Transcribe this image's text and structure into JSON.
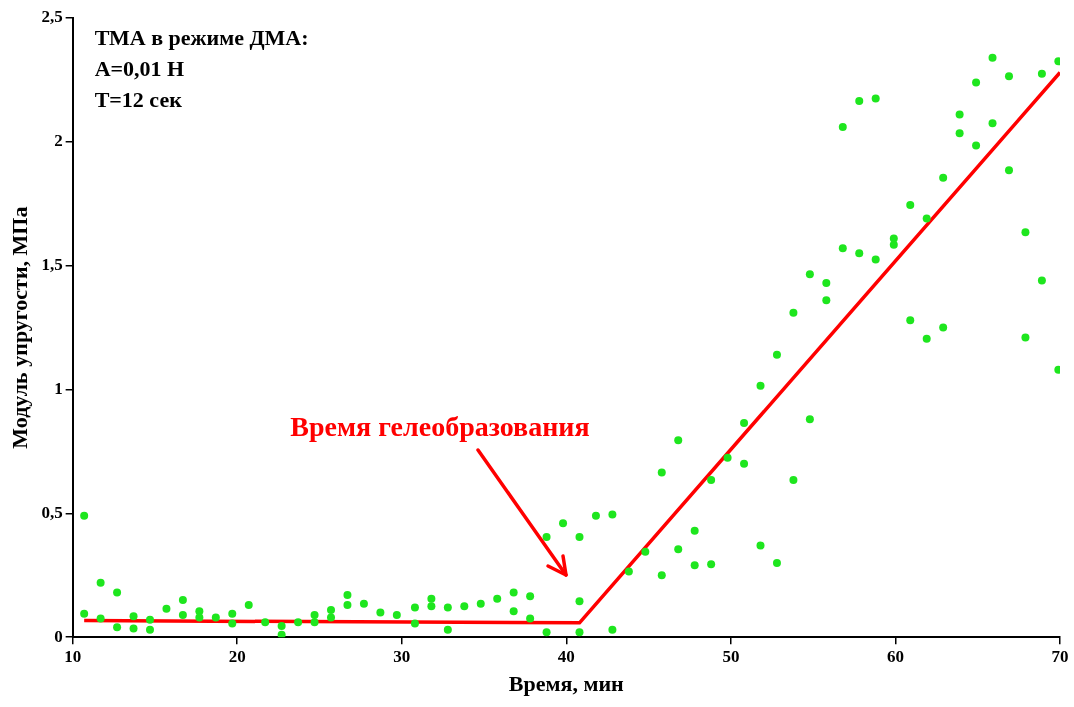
{
  "chart_data": {
    "type": "scatter",
    "xlabel": "Время, мин",
    "ylabel": "Модуль упругости, МПа",
    "xlim": [
      10,
      70
    ],
    "xticks": [
      10,
      20,
      30,
      40,
      50,
      60,
      70
    ],
    "ylim": [
      0,
      2.5
    ],
    "yticks": [
      0,
      {
        "value": 0.5,
        "label": "0,5"
      },
      1,
      {
        "value": 1.5,
        "label": "1,5"
      },
      2,
      {
        "value": 2.5,
        "label": "2,5"
      }
    ],
    "grid": false,
    "legend": false,
    "marker": "circle",
    "annotations": [
      "ТМА в режиме ДМА:",
      "А=0,01 Н",
      "Т=12 сек",
      "Время гелеобразования"
    ],
    "series": [
      {
        "color": "#1ee61e",
        "x": [
          10.7,
          10.7,
          11.7,
          11.7,
          12.7,
          12.7,
          13.7,
          13.7,
          14.7,
          14.7,
          15.7,
          16.7,
          16.7,
          17.7,
          17.7,
          18.7,
          19.7,
          19.7,
          20.7,
          21.7,
          22.7,
          22.7,
          23.7,
          24.7,
          24.7,
          25.7,
          25.7,
          26.7,
          26.7,
          27.7,
          28.7,
          29.7,
          30.8,
          30.8,
          31.8,
          31.8,
          32.8,
          32.8,
          33.8,
          34.8,
          35.8,
          36.8,
          36.8,
          37.8,
          37.8,
          38.8,
          38.8,
          39.8,
          40.8,
          40.8,
          40.8,
          41.8,
          42.8,
          42.8,
          43.8,
          44.8,
          45.8,
          45.8,
          46.8,
          46.8,
          47.8,
          47.8,
          48.8,
          48.8,
          49.8,
          50.8,
          50.8,
          51.8,
          51.8,
          52.8,
          52.8,
          53.8,
          53.8,
          54.8,
          54.8,
          55.8,
          55.8,
          56.8,
          56.8,
          57.8,
          57.8,
          58.8,
          58.8,
          59.9,
          59.9,
          60.9,
          60.9,
          61.9,
          61.9,
          62.9,
          62.9,
          63.9,
          63.9,
          64.9,
          64.9,
          65.9,
          65.9,
          66.9,
          66.9,
          67.9,
          67.9,
          68.9,
          68.9,
          69.9,
          69.9
        ],
        "values": [
          0.49,
          0.095,
          0.22,
          0.075,
          0.18,
          0.04,
          0.085,
          0.035,
          0.03,
          0.07,
          0.115,
          0.15,
          0.09,
          0.105,
          0.08,
          0.08,
          0.095,
          0.055,
          0.13,
          0.06,
          0.045,
          0.01,
          0.06,
          0.09,
          0.06,
          0.11,
          0.08,
          0.17,
          0.13,
          0.135,
          0.1,
          0.09,
          0.12,
          0.055,
          0.155,
          0.125,
          0.12,
          0.03,
          0.125,
          0.135,
          0.155,
          0.18,
          0.105,
          0.165,
          0.075,
          0.405,
          0.02,
          0.46,
          0.405,
          0.145,
          0.02,
          0.49,
          0.495,
          0.03,
          0.265,
          0.345,
          0.665,
          0.25,
          0.795,
          0.355,
          0.43,
          0.29,
          0.635,
          0.295,
          0.725,
          0.865,
          0.7,
          1.015,
          0.37,
          1.14,
          0.3,
          1.31,
          0.635,
          1.465,
          0.88,
          1.43,
          1.36,
          1.57,
          2.06,
          2.165,
          1.55,
          2.175,
          1.525,
          1.61,
          1.585,
          1.745,
          1.28,
          1.69,
          1.205,
          1.855,
          1.25,
          2.11,
          2.035,
          2.24,
          1.985,
          2.34,
          2.075,
          2.265,
          1.885,
          1.635,
          1.21,
          2.275,
          1.44,
          2.325,
          1.08
        ]
      },
      {
        "type": "line",
        "color": "#ff0000",
        "marker": "none",
        "x": [
          10.7,
          40.8,
          70
        ],
        "values": [
          0.067,
          0.058,
          2.28
        ]
      }
    ]
  }
}
